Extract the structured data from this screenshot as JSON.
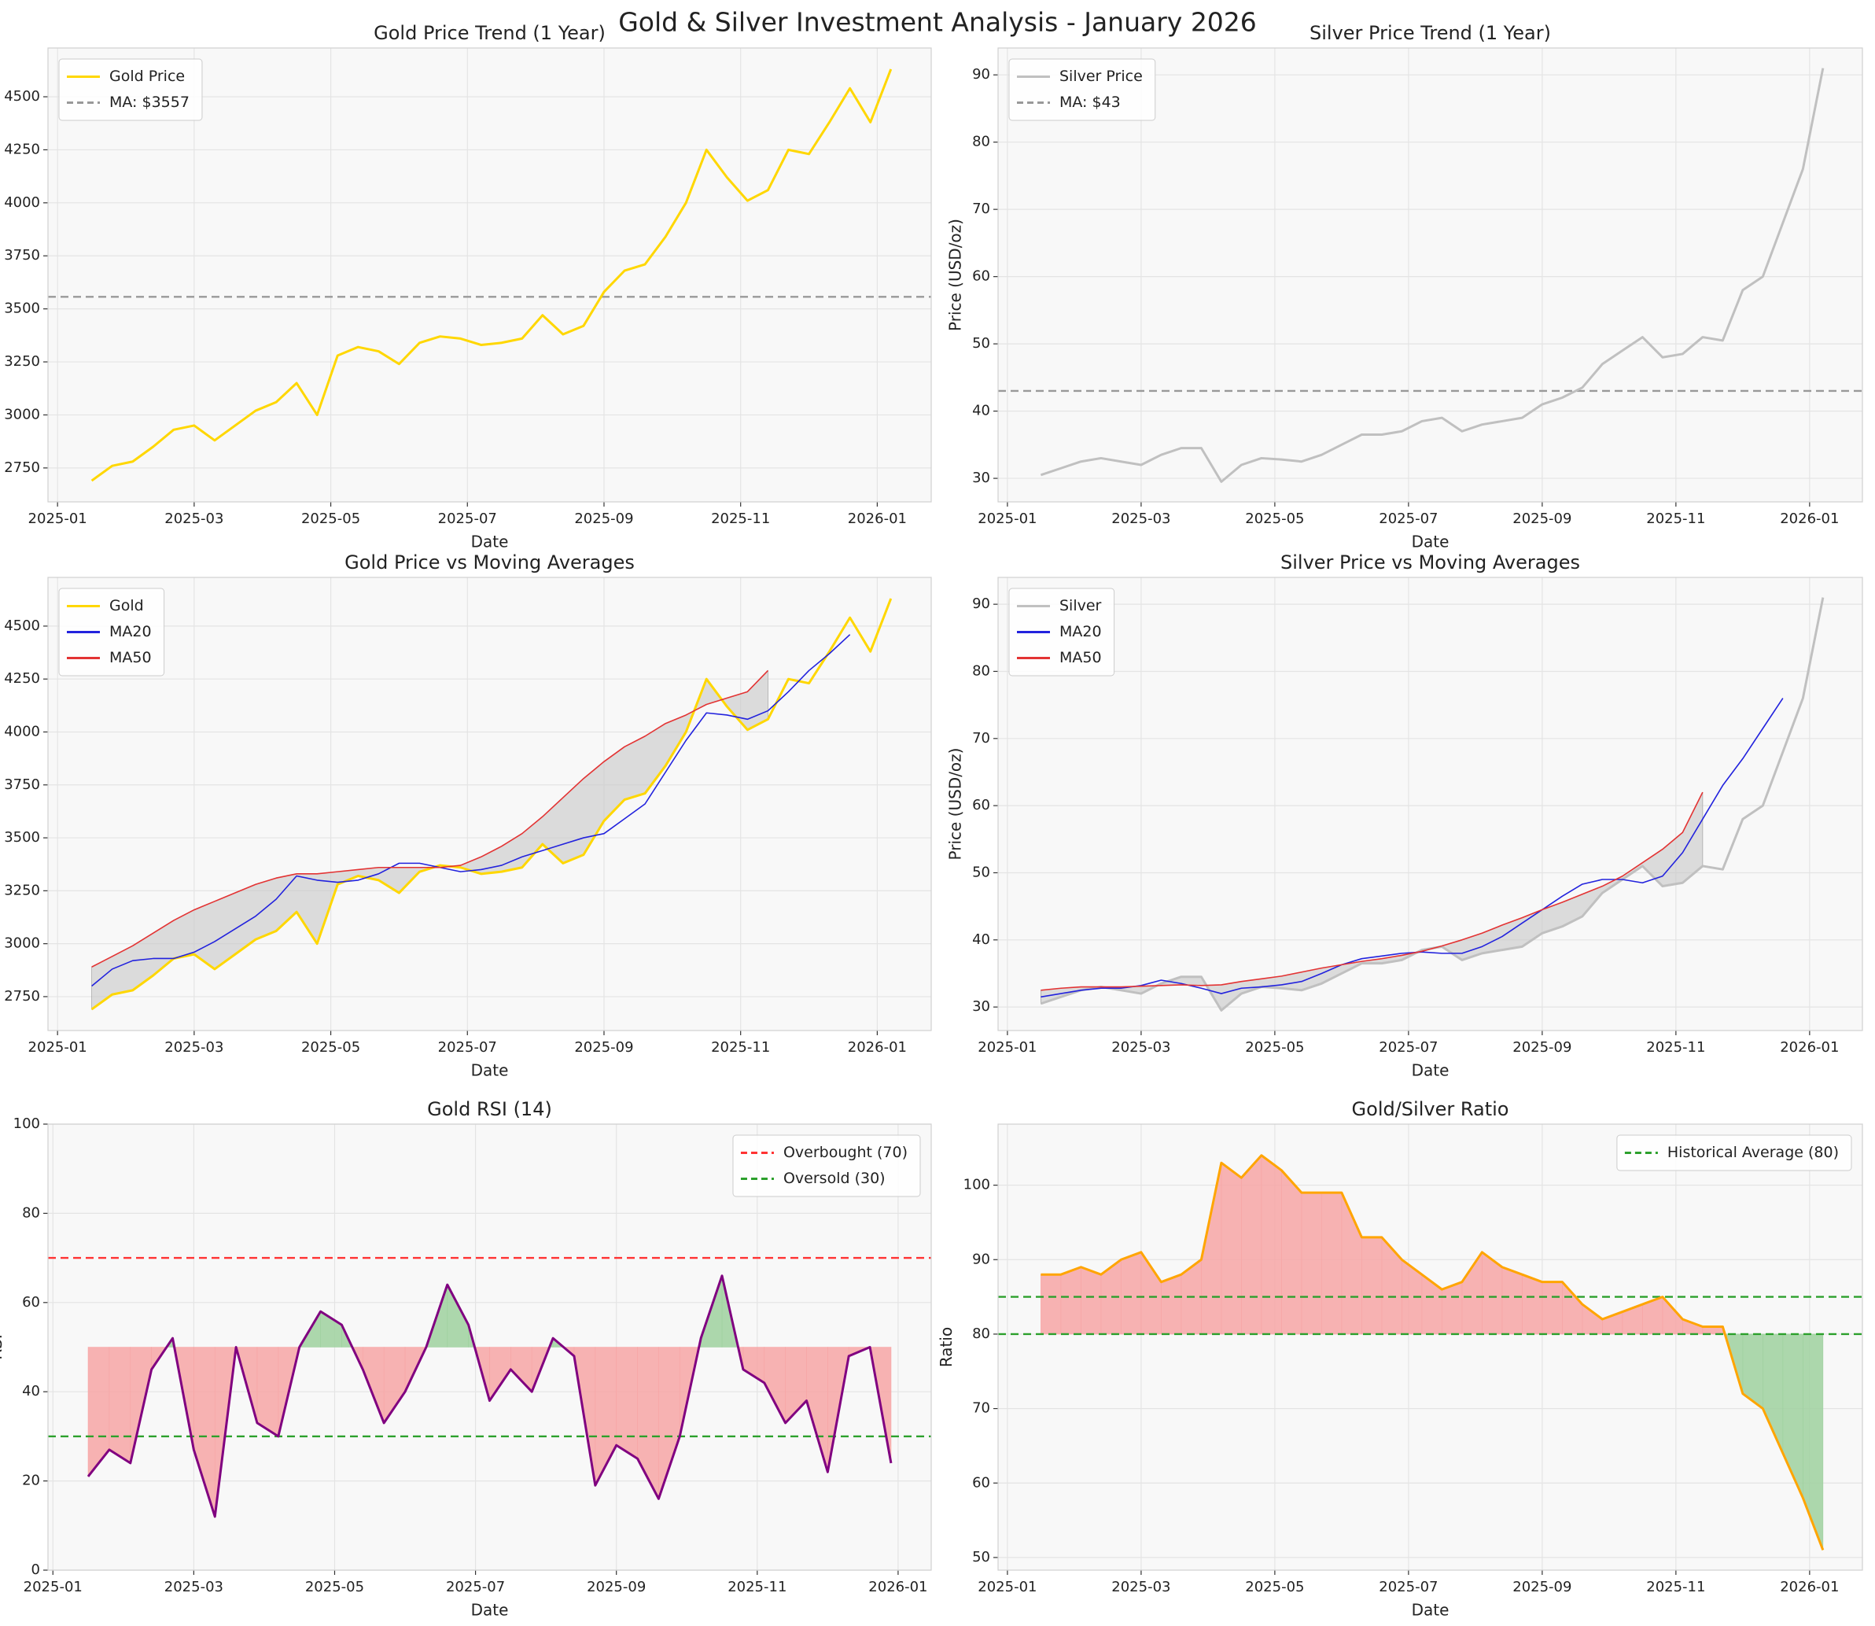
{
  "title": "Gold & Silver Investment Analysis - January 2026",
  "chart_data": [
    {
      "type": "line",
      "title": "Gold Price Trend (1 Year)",
      "x_label": "Date",
      "y_label": "Price (USD/oz)",
      "x": [
        1.5,
        1.8,
        2.1,
        2.4,
        2.7,
        3.0,
        3.3,
        3.6,
        3.9,
        4.2,
        4.5,
        4.8,
        5.1,
        5.4,
        5.7,
        6.0,
        6.3,
        6.6,
        6.9,
        7.2,
        7.5,
        7.8,
        8.1,
        8.4,
        8.7,
        9.0,
        9.3,
        9.6,
        9.9,
        10.2,
        10.5,
        10.8,
        11.1,
        11.4,
        11.7,
        12.0,
        12.3,
        12.6,
        12.9,
        13.2
      ],
      "series": [
        {
          "name": "Gold Price",
          "color": "#ffd700",
          "values": [
            2690,
            2760,
            2780,
            2850,
            2930,
            2950,
            2880,
            2950,
            3020,
            3060,
            3150,
            3000,
            3280,
            3320,
            3300,
            3240,
            3340,
            3370,
            3360,
            3330,
            3340,
            3360,
            3470,
            3380,
            3420,
            3580,
            3680,
            3710,
            3840,
            4000,
            4250,
            4120,
            4010,
            4060,
            4250,
            4230,
            4380,
            4540,
            4380,
            4630
          ]
        }
      ],
      "reference_lines": [
        {
          "name": "MA: $3557",
          "value": 3557,
          "color": "#999999"
        }
      ],
      "xlim": [
        0.86,
        13.79
      ],
      "ylim": [
        2590,
        4730
      ],
      "xticks": [
        {
          "value": 1,
          "label": "2025-01"
        },
        {
          "value": 3,
          "label": "2025-03"
        },
        {
          "value": 5,
          "label": "2025-05"
        },
        {
          "value": 7,
          "label": "2025-07"
        },
        {
          "value": 9,
          "label": "2025-09"
        },
        {
          "value": 11,
          "label": "2025-11"
        },
        {
          "value": 13,
          "label": "2026-01"
        }
      ],
      "yticks": [
        2750,
        3000,
        3250,
        3500,
        3750,
        4000,
        4250,
        4500
      ],
      "grid": true,
      "legend": "upper left"
    },
    {
      "type": "line",
      "title": "Silver Price Trend (1 Year)",
      "x_label": "Date",
      "y_label": "Price (USD/oz)",
      "x": [
        1.5,
        1.8,
        2.1,
        2.4,
        2.7,
        3.0,
        3.3,
        3.6,
        3.9,
        4.2,
        4.5,
        4.8,
        5.1,
        5.4,
        5.7,
        6.0,
        6.3,
        6.6,
        6.9,
        7.2,
        7.5,
        7.8,
        8.1,
        8.4,
        8.7,
        9.0,
        9.3,
        9.6,
        9.9,
        10.2,
        10.5,
        10.8,
        11.1,
        11.4,
        11.7,
        12.0,
        12.3,
        12.6,
        12.9,
        13.2
      ],
      "series": [
        {
          "name": "Silver Price",
          "color": "#c0c0c0",
          "values": [
            30.5,
            31.5,
            32.5,
            33,
            32.5,
            32,
            33.5,
            34.5,
            34.5,
            29.5,
            32,
            33,
            32.8,
            32.5,
            33.5,
            35,
            36.5,
            36.5,
            37,
            38.5,
            39,
            37,
            38,
            38.5,
            39,
            41,
            42,
            43.5,
            47,
            49,
            51,
            48,
            48.5,
            51,
            50.5,
            58,
            60,
            68,
            76,
            91
          ]
        }
      ],
      "reference_lines": [
        {
          "name": "MA: $43",
          "value": 43,
          "color": "#999999"
        }
      ],
      "xlim": [
        0.86,
        13.79
      ],
      "ylim": [
        26.5,
        94
      ],
      "xticks": [
        {
          "value": 1,
          "label": "2025-01"
        },
        {
          "value": 3,
          "label": "2025-03"
        },
        {
          "value": 5,
          "label": "2025-05"
        },
        {
          "value": 7,
          "label": "2025-07"
        },
        {
          "value": 9,
          "label": "2025-09"
        },
        {
          "value": 11,
          "label": "2025-11"
        },
        {
          "value": 13,
          "label": "2026-01"
        }
      ],
      "yticks": [
        30,
        40,
        50,
        60,
        70,
        80,
        90
      ],
      "grid": true,
      "legend": "upper left"
    },
    {
      "type": "line",
      "title": "Gold Price vs Moving Averages",
      "x_label": "Date",
      "y_label": "Price (USD/oz)",
      "x": [
        1.5,
        1.8,
        2.1,
        2.4,
        2.7,
        3.0,
        3.3,
        3.6,
        3.9,
        4.2,
        4.5,
        4.8,
        5.1,
        5.4,
        5.7,
        6.0,
        6.3,
        6.6,
        6.9,
        7.2,
        7.5,
        7.8,
        8.1,
        8.4,
        8.7,
        9.0,
        9.3,
        9.6,
        9.9,
        10.2,
        10.5,
        10.8,
        11.1,
        11.4,
        11.7,
        12.0,
        12.3,
        12.6,
        12.9,
        13.2
      ],
      "series": [
        {
          "name": "Gold",
          "color": "#ffd700",
          "values": [
            2690,
            2760,
            2780,
            2850,
            2930,
            2950,
            2880,
            2950,
            3020,
            3060,
            3150,
            3000,
            3280,
            3320,
            3300,
            3240,
            3340,
            3370,
            3360,
            3330,
            3340,
            3360,
            3470,
            3380,
            3420,
            3580,
            3680,
            3710,
            3840,
            4000,
            4250,
            4120,
            4010,
            4060,
            4250,
            4230,
            4380,
            4540,
            4380,
            4630
          ]
        },
        {
          "name": "MA20",
          "color": "#2222dd",
          "values": [
            2800,
            2880,
            2920,
            2930,
            2930,
            2960,
            3010,
            3070,
            3130,
            3210,
            3320,
            3300,
            3290,
            3300,
            3330,
            3380,
            3380,
            3360,
            3340,
            3350,
            3370,
            3410,
            3440,
            3470,
            3500,
            3520,
            3590,
            3660,
            3810,
            3960,
            4090,
            4080,
            4060,
            4100,
            4190,
            4290,
            4370,
            4460,
            null,
            null
          ]
        },
        {
          "name": "MA50",
          "color": "#e33333",
          "values": [
            2890,
            2940,
            2990,
            3050,
            3110,
            3160,
            3200,
            3240,
            3280,
            3310,
            3330,
            3330,
            3340,
            3350,
            3360,
            3360,
            3360,
            3360,
            3370,
            3410,
            3460,
            3520,
            3600,
            3690,
            3780,
            3860,
            3930,
            3980,
            4040,
            4080,
            4130,
            4160,
            4190,
            4290,
            null,
            null,
            null,
            null,
            null,
            null
          ]
        }
      ],
      "fill_color": "#c8c8c8",
      "xlim": [
        0.86,
        13.79
      ],
      "ylim": [
        2590,
        4730
      ],
      "xticks": [
        {
          "value": 1,
          "label": "2025-01"
        },
        {
          "value": 3,
          "label": "2025-03"
        },
        {
          "value": 5,
          "label": "2025-05"
        },
        {
          "value": 7,
          "label": "2025-07"
        },
        {
          "value": 9,
          "label": "2025-09"
        },
        {
          "value": 11,
          "label": "2025-11"
        },
        {
          "value": 13,
          "label": "2026-01"
        }
      ],
      "yticks": [
        2750,
        3000,
        3250,
        3500,
        3750,
        4000,
        4250,
        4500
      ],
      "grid": true,
      "legend": "upper left"
    },
    {
      "type": "line",
      "title": "Silver Price vs Moving Averages",
      "x_label": "Date",
      "y_label": "Price (USD/oz)",
      "x": [
        1.5,
        1.8,
        2.1,
        2.4,
        2.7,
        3.0,
        3.3,
        3.6,
        3.9,
        4.2,
        4.5,
        4.8,
        5.1,
        5.4,
        5.7,
        6.0,
        6.3,
        6.6,
        6.9,
        7.2,
        7.5,
        7.8,
        8.1,
        8.4,
        8.7,
        9.0,
        9.3,
        9.6,
        9.9,
        10.2,
        10.5,
        10.8,
        11.1,
        11.4,
        11.7,
        12.0,
        12.3,
        12.6,
        12.9,
        13.2
      ],
      "series": [
        {
          "name": "Silver",
          "color": "#c0c0c0",
          "values": [
            30.5,
            31.5,
            32.5,
            33,
            32.5,
            32,
            33.5,
            34.5,
            34.5,
            29.5,
            32,
            33,
            32.8,
            32.5,
            33.5,
            35,
            36.5,
            36.5,
            37,
            38.5,
            39,
            37,
            38,
            38.5,
            39,
            41,
            42,
            43.5,
            47,
            49,
            51,
            48,
            48.5,
            51,
            50.5,
            58,
            60,
            68,
            76,
            91
          ]
        },
        {
          "name": "MA20",
          "color": "#2222dd",
          "values": [
            31.5,
            32,
            32.5,
            32.8,
            32.8,
            33.2,
            34,
            33.5,
            32.8,
            32,
            32.8,
            33,
            33.3,
            33.8,
            35,
            36.3,
            37.2,
            37.6,
            38,
            38.2,
            38,
            38,
            39,
            40.5,
            42.5,
            44.5,
            46.5,
            48.3,
            49,
            49,
            48.5,
            49.5,
            53,
            58,
            63,
            67,
            71.5,
            76,
            null,
            null
          ]
        },
        {
          "name": "MA50",
          "color": "#e33333",
          "values": [
            32.5,
            32.8,
            33,
            33,
            33,
            33.1,
            33.2,
            33.3,
            33.2,
            33.3,
            33.8,
            34.2,
            34.6,
            35.2,
            35.8,
            36.3,
            36.8,
            37.2,
            37.7,
            38.3,
            39.1,
            40,
            41,
            42.2,
            43.3,
            44.5,
            45.6,
            46.8,
            48,
            49.5,
            51.5,
            53.5,
            56,
            62,
            null,
            null,
            null,
            null,
            null,
            null
          ]
        }
      ],
      "fill_color": "#c8c8c8",
      "xlim": [
        0.86,
        13.79
      ],
      "ylim": [
        26.5,
        94
      ],
      "xticks": [
        {
          "value": 1,
          "label": "2025-01"
        },
        {
          "value": 3,
          "label": "2025-03"
        },
        {
          "value": 5,
          "label": "2025-05"
        },
        {
          "value": 7,
          "label": "2025-07"
        },
        {
          "value": 9,
          "label": "2025-09"
        },
        {
          "value": 11,
          "label": "2025-11"
        },
        {
          "value": 13,
          "label": "2026-01"
        }
      ],
      "yticks": [
        30,
        40,
        50,
        60,
        70,
        80,
        90
      ],
      "grid": true,
      "legend": "upper left"
    },
    {
      "type": "line",
      "title": "Gold RSI (14)",
      "x_label": "Date",
      "y_label": "RSI",
      "x": [
        1.5,
        1.8,
        2.1,
        2.4,
        2.7,
        3.0,
        3.3,
        3.6,
        3.9,
        4.2,
        4.5,
        4.8,
        5.1,
        5.4,
        5.7,
        6.0,
        6.3,
        6.6,
        6.9,
        7.2,
        7.5,
        7.8,
        8.1,
        8.4,
        8.7,
        9.0,
        9.3,
        9.6,
        9.9,
        10.2,
        10.5,
        10.8,
        11.1,
        11.4,
        11.7,
        12.0,
        12.3,
        12.6,
        12.9
      ],
      "series": [
        {
          "name": "RSI",
          "color": "#800080",
          "values": [
            21,
            27,
            24,
            45,
            52,
            27,
            12,
            50,
            33,
            30,
            50,
            58,
            55,
            45,
            33,
            40,
            50,
            64,
            55,
            38,
            45,
            40,
            52,
            48,
            19,
            28,
            25,
            16,
            30,
            52,
            66,
            45,
            42,
            33,
            38,
            22,
            48,
            50,
            24
          ]
        }
      ],
      "fill_base": 50,
      "fill_colors": {
        "above": "#9fd19f",
        "below": "#f7a6a6"
      },
      "reference_lines": [
        {
          "name": "Overbought (70)",
          "value": 70,
          "color": "#ff3333"
        },
        {
          "name": "Oversold (30)",
          "value": 30,
          "color": "#2ca02c"
        }
      ],
      "xlim": [
        0.93,
        13.47
      ],
      "ylim": [
        0,
        100
      ],
      "xticks": [
        {
          "value": 1,
          "label": "2025-01"
        },
        {
          "value": 3,
          "label": "2025-03"
        },
        {
          "value": 5,
          "label": "2025-05"
        },
        {
          "value": 7,
          "label": "2025-07"
        },
        {
          "value": 9,
          "label": "2025-09"
        },
        {
          "value": 11,
          "label": "2025-11"
        },
        {
          "value": 13,
          "label": "2026-01"
        }
      ],
      "yticks": [
        0,
        20,
        40,
        60,
        80,
        100
      ],
      "grid": true,
      "legend": "upper right"
    },
    {
      "type": "line",
      "title": "Gold/Silver Ratio",
      "x_label": "Date",
      "y_label": "Ratio",
      "x": [
        1.5,
        1.8,
        2.1,
        2.4,
        2.7,
        3.0,
        3.3,
        3.6,
        3.9,
        4.2,
        4.5,
        4.8,
        5.1,
        5.4,
        5.7,
        6.0,
        6.3,
        6.6,
        6.9,
        7.2,
        7.5,
        7.8,
        8.1,
        8.4,
        8.7,
        9.0,
        9.3,
        9.6,
        9.9,
        10.2,
        10.5,
        10.8,
        11.1,
        11.4,
        11.7,
        12.0,
        12.3,
        12.6,
        12.9,
        13.2
      ],
      "series": [
        {
          "name": "Ratio",
          "color": "#ffa500",
          "values": [
            88,
            88,
            89,
            88,
            90,
            91,
            87,
            88,
            90,
            103,
            101,
            104,
            102,
            99,
            99,
            99,
            93,
            93,
            90,
            88,
            86,
            87,
            91,
            89,
            88,
            87,
            87,
            84,
            82,
            83,
            84,
            85,
            82,
            81,
            81,
            72,
            70,
            64,
            58,
            51
          ]
        }
      ],
      "fill_base": 80,
      "fill_colors": {
        "above": "#f7a6a6",
        "below": "#9fd19f"
      },
      "reference_lines": [
        {
          "name": "Historical Average (80)",
          "value": 80,
          "color": "#2ca02c"
        },
        {
          "value": 85,
          "color": "#2ca02c"
        }
      ],
      "xlim": [
        0.86,
        13.79
      ],
      "ylim": [
        48.3,
        108.2
      ],
      "xticks": [
        {
          "value": 1,
          "label": "2025-01"
        },
        {
          "value": 3,
          "label": "2025-03"
        },
        {
          "value": 5,
          "label": "2025-05"
        },
        {
          "value": 7,
          "label": "2025-07"
        },
        {
          "value": 9,
          "label": "2025-09"
        },
        {
          "value": 11,
          "label": "2025-11"
        },
        {
          "value": 13,
          "label": "2026-01"
        }
      ],
      "yticks": [
        50,
        60,
        70,
        80,
        90,
        100
      ],
      "grid": true,
      "legend": "upper right"
    }
  ]
}
